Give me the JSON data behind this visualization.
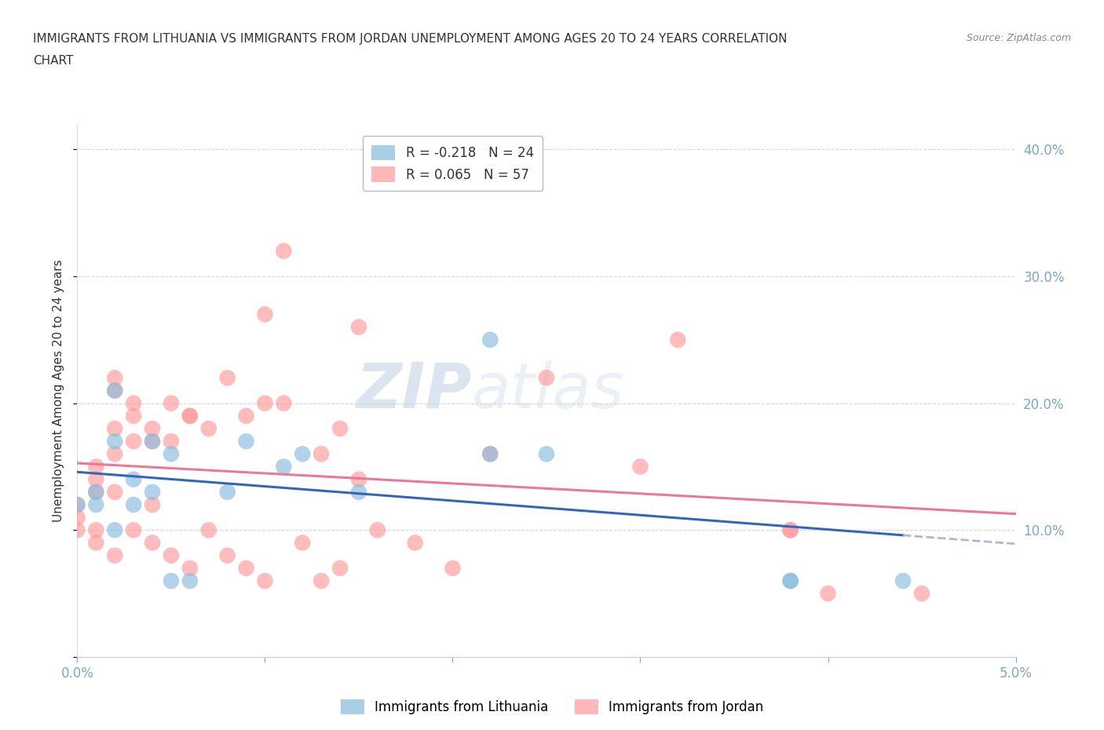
{
  "title_line1": "IMMIGRANTS FROM LITHUANIA VS IMMIGRANTS FROM JORDAN UNEMPLOYMENT AMONG AGES 20 TO 24 YEARS CORRELATION",
  "title_line2": "CHART",
  "source": "Source: ZipAtlas.com",
  "ylabel": "Unemployment Among Ages 20 to 24 years",
  "xlim": [
    0.0,
    0.05
  ],
  "ylim": [
    0.0,
    0.42
  ],
  "xticks": [
    0.0,
    0.01,
    0.02,
    0.03,
    0.04,
    0.05
  ],
  "xtick_labels_show": [
    "0.0%",
    "",
    "",
    "",
    "",
    "5.0%"
  ],
  "yticks": [
    0.0,
    0.1,
    0.2,
    0.3,
    0.4
  ],
  "ytick_labels_right": [
    "",
    "10.0%",
    "20.0%",
    "30.0%",
    "40.0%"
  ],
  "lithuania_color": "#88BBDD",
  "jordan_color": "#FF9999",
  "trend_lithuania_color": "#3366BB",
  "trend_jordan_color": "#EE7799",
  "trend_dashed_color": "#AABBCC",
  "R_lithuania": -0.218,
  "N_lithuania": 24,
  "R_jordan": 0.065,
  "N_jordan": 57,
  "watermark_zip": "ZIP",
  "watermark_atlas": "atlas",
  "lithuania_x": [
    0.0,
    0.001,
    0.001,
    0.002,
    0.002,
    0.002,
    0.003,
    0.003,
    0.004,
    0.004,
    0.005,
    0.005,
    0.006,
    0.008,
    0.009,
    0.011,
    0.012,
    0.015,
    0.022,
    0.022,
    0.025,
    0.038,
    0.038,
    0.044
  ],
  "lithuania_y": [
    0.12,
    0.13,
    0.12,
    0.17,
    0.21,
    0.1,
    0.14,
    0.12,
    0.13,
    0.17,
    0.16,
    0.06,
    0.06,
    0.13,
    0.17,
    0.15,
    0.16,
    0.13,
    0.25,
    0.16,
    0.16,
    0.06,
    0.06,
    0.06
  ],
  "jordan_x": [
    0.0,
    0.0,
    0.0,
    0.001,
    0.001,
    0.001,
    0.001,
    0.001,
    0.002,
    0.002,
    0.002,
    0.002,
    0.002,
    0.002,
    0.003,
    0.003,
    0.003,
    0.003,
    0.004,
    0.004,
    0.004,
    0.004,
    0.005,
    0.005,
    0.005,
    0.006,
    0.006,
    0.006,
    0.007,
    0.007,
    0.008,
    0.008,
    0.009,
    0.009,
    0.01,
    0.01,
    0.01,
    0.011,
    0.011,
    0.012,
    0.013,
    0.013,
    0.014,
    0.014,
    0.015,
    0.015,
    0.016,
    0.018,
    0.02,
    0.022,
    0.025,
    0.03,
    0.032,
    0.038,
    0.038,
    0.04,
    0.045
  ],
  "jordan_y": [
    0.12,
    0.11,
    0.1,
    0.15,
    0.14,
    0.13,
    0.1,
    0.09,
    0.22,
    0.21,
    0.18,
    0.16,
    0.13,
    0.08,
    0.2,
    0.19,
    0.17,
    0.1,
    0.18,
    0.17,
    0.12,
    0.09,
    0.2,
    0.17,
    0.08,
    0.19,
    0.19,
    0.07,
    0.18,
    0.1,
    0.22,
    0.08,
    0.19,
    0.07,
    0.27,
    0.2,
    0.06,
    0.32,
    0.2,
    0.09,
    0.16,
    0.06,
    0.18,
    0.07,
    0.26,
    0.14,
    0.1,
    0.09,
    0.07,
    0.16,
    0.22,
    0.15,
    0.25,
    0.1,
    0.1,
    0.05,
    0.05
  ],
  "background_color": "#FFFFFF",
  "grid_color": "#CCCCCC",
  "title_color": "#333333",
  "axis_color": "#7AAABB"
}
